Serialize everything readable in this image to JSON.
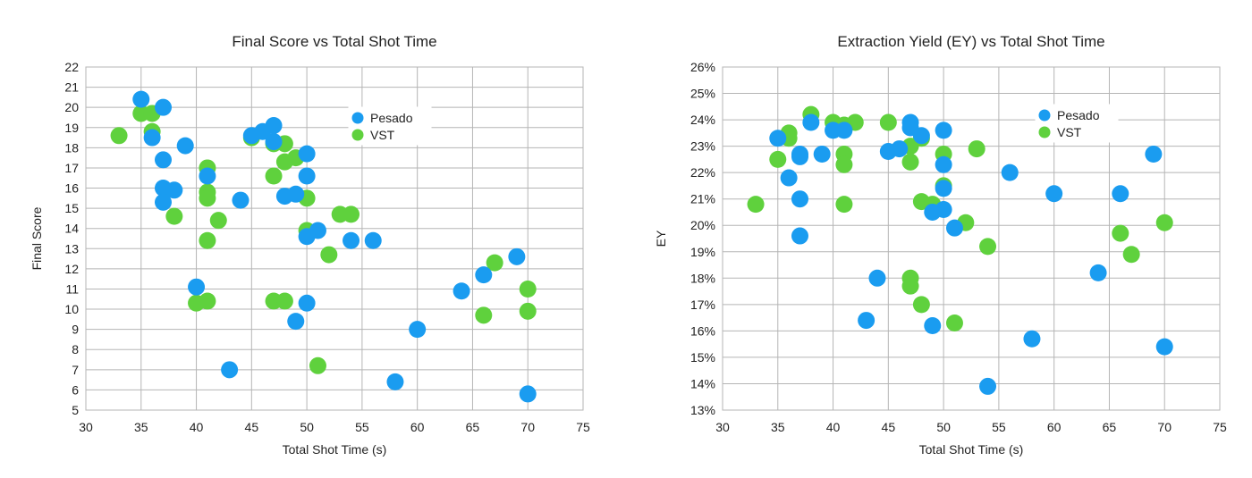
{
  "colors": {
    "Pesado": "#1a9cf0",
    "VST": "#5fd13d"
  },
  "chart_data": [
    {
      "type": "scatter",
      "title": "Final Score vs Total Shot Time",
      "xlabel": "Total Shot Time (s)",
      "ylabel": "Final Score",
      "xlim": [
        30,
        75
      ],
      "ylim": [
        5,
        22
      ],
      "xticks": [
        30,
        35,
        40,
        45,
        50,
        55,
        60,
        65,
        70,
        75
      ],
      "yticks": [
        5,
        6,
        7,
        8,
        9,
        10,
        11,
        12,
        13,
        14,
        15,
        16,
        17,
        18,
        19,
        20,
        21,
        22
      ],
      "ytick_format": "int",
      "grid": true,
      "legend": "top-center",
      "series": [
        {
          "name": "VST",
          "points": [
            [
              33,
              18.6
            ],
            [
              35,
              19.7
            ],
            [
              36,
              19.7
            ],
            [
              36,
              18.8
            ],
            [
              38,
              14.6
            ],
            [
              40,
              10.3
            ],
            [
              41,
              17.0
            ],
            [
              41,
              15.8
            ],
            [
              41,
              15.5
            ],
            [
              41,
              13.4
            ],
            [
              41,
              10.4
            ],
            [
              42,
              14.4
            ],
            [
              45,
              18.5
            ],
            [
              47,
              18.2
            ],
            [
              47,
              16.6
            ],
            [
              47,
              10.4
            ],
            [
              48,
              18.2
            ],
            [
              48,
              17.3
            ],
            [
              48,
              10.4
            ],
            [
              49,
              17.5
            ],
            [
              50,
              15.5
            ],
            [
              50,
              13.9
            ],
            [
              51,
              7.2
            ],
            [
              52,
              12.7
            ],
            [
              53,
              14.7
            ],
            [
              54,
              14.7
            ],
            [
              66,
              9.7
            ],
            [
              67,
              12.3
            ],
            [
              70,
              11.0
            ],
            [
              70,
              9.9
            ]
          ]
        },
        {
          "name": "Pesado",
          "points": [
            [
              35,
              20.4
            ],
            [
              36,
              18.5
            ],
            [
              37,
              20.0
            ],
            [
              37,
              17.4
            ],
            [
              37,
              16.0
            ],
            [
              37,
              15.3
            ],
            [
              38,
              15.9
            ],
            [
              39,
              18.1
            ],
            [
              40,
              11.1
            ],
            [
              41,
              16.6
            ],
            [
              43,
              7.0
            ],
            [
              44,
              15.4
            ],
            [
              45,
              18.6
            ],
            [
              46,
              18.8
            ],
            [
              47,
              19.1
            ],
            [
              47,
              18.3
            ],
            [
              48,
              15.6
            ],
            [
              49,
              15.7
            ],
            [
              49,
              9.4
            ],
            [
              50,
              17.7
            ],
            [
              50,
              16.6
            ],
            [
              50,
              13.6
            ],
            [
              50,
              10.3
            ],
            [
              51,
              13.9
            ],
            [
              54,
              13.4
            ],
            [
              56,
              13.4
            ],
            [
              58,
              6.4
            ],
            [
              60,
              9.0
            ],
            [
              64,
              10.9
            ],
            [
              66,
              11.7
            ],
            [
              69,
              12.6
            ],
            [
              70,
              5.8
            ]
          ]
        }
      ],
      "legend_order": [
        "Pesado",
        "VST"
      ]
    },
    {
      "type": "scatter",
      "title": "Extraction Yield (EY) vs Total Shot Time",
      "xlabel": "Total Shot Time (s)",
      "ylabel": "EY",
      "xlim": [
        30,
        75
      ],
      "ylim": [
        13,
        26
      ],
      "xticks": [
        30,
        35,
        40,
        45,
        50,
        55,
        60,
        65,
        70,
        75
      ],
      "yticks": [
        13,
        14,
        15,
        16,
        17,
        18,
        19,
        20,
        21,
        22,
        23,
        24,
        25,
        26
      ],
      "ytick_format": "percent",
      "grid": true,
      "legend": "top-right",
      "series": [
        {
          "name": "VST",
          "points": [
            [
              33,
              20.8
            ],
            [
              35,
              22.5
            ],
            [
              36,
              23.5
            ],
            [
              36,
              23.3
            ],
            [
              38,
              24.2
            ],
            [
              40,
              23.9
            ],
            [
              41,
              23.8
            ],
            [
              41,
              22.7
            ],
            [
              41,
              22.3
            ],
            [
              41,
              20.8
            ],
            [
              42,
              23.9
            ],
            [
              45,
              23.9
            ],
            [
              47,
              23.0
            ],
            [
              47,
              22.4
            ],
            [
              47,
              18.0
            ],
            [
              47,
              17.7
            ],
            [
              48,
              23.3
            ],
            [
              48,
              20.9
            ],
            [
              48,
              17.0
            ],
            [
              49,
              20.8
            ],
            [
              50,
              22.7
            ],
            [
              50,
              21.5
            ],
            [
              51,
              16.3
            ],
            [
              52,
              20.1
            ],
            [
              53,
              22.9
            ],
            [
              54,
              19.2
            ],
            [
              66,
              19.7
            ],
            [
              67,
              18.9
            ],
            [
              70,
              20.1
            ]
          ]
        },
        {
          "name": "Pesado",
          "points": [
            [
              35,
              23.3
            ],
            [
              36,
              21.8
            ],
            [
              37,
              22.6
            ],
            [
              37,
              22.7
            ],
            [
              37,
              21.0
            ],
            [
              37,
              19.6
            ],
            [
              38,
              23.9
            ],
            [
              39,
              22.7
            ],
            [
              40,
              23.6
            ],
            [
              41,
              23.6
            ],
            [
              43,
              16.4
            ],
            [
              44,
              18.0
            ],
            [
              45,
              22.8
            ],
            [
              46,
              22.9
            ],
            [
              47,
              23.9
            ],
            [
              47,
              23.7
            ],
            [
              48,
              23.4
            ],
            [
              49,
              20.5
            ],
            [
              49,
              16.2
            ],
            [
              50,
              23.6
            ],
            [
              50,
              22.3
            ],
            [
              50,
              21.4
            ],
            [
              50,
              20.6
            ],
            [
              51,
              19.9
            ],
            [
              54,
              13.9
            ],
            [
              56,
              22.0
            ],
            [
              58,
              15.7
            ],
            [
              60,
              21.2
            ],
            [
              64,
              18.2
            ],
            [
              66,
              21.2
            ],
            [
              69,
              22.7
            ],
            [
              70,
              15.4
            ]
          ]
        }
      ],
      "legend_order": [
        "Pesado",
        "VST"
      ]
    }
  ]
}
